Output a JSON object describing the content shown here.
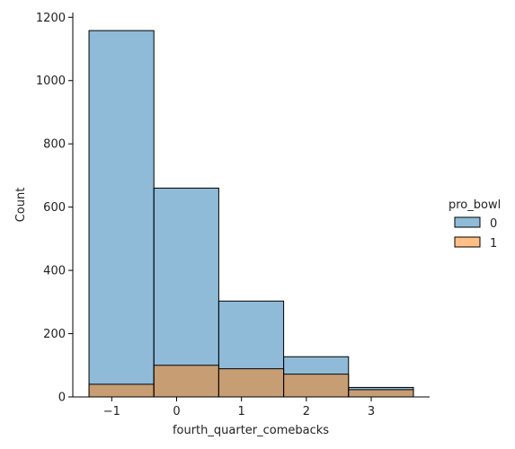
{
  "chart_data": {
    "type": "bar",
    "subtype": "histogram-overlay",
    "xlabel": "fourth_quarter_comebacks",
    "ylabel": "Count",
    "bin_edges": [
      -1.35,
      -0.35,
      0.65,
      1.65,
      2.65,
      3.65
    ],
    "x_ticks": [
      -1,
      0,
      1,
      2,
      3
    ],
    "x_tick_labels": [
      "−1",
      "0",
      "1",
      "2",
      "3"
    ],
    "y_ticks": [
      0,
      200,
      400,
      600,
      800,
      1000,
      1200
    ],
    "y_tick_labels": [
      "0",
      "200",
      "400",
      "600",
      "800",
      "1000",
      "1200"
    ],
    "xlim": [
      -1.6,
      3.9
    ],
    "ylim": [
      0,
      1215
    ],
    "legend": {
      "title": "pro_bowl",
      "placement": "right",
      "entries": [
        "0",
        "1"
      ]
    },
    "series": [
      {
        "name": "0",
        "color": "#1f77b4",
        "values": [
          1158,
          660,
          303,
          127,
          30
        ]
      },
      {
        "name": "1",
        "color": "#ff7f0e",
        "values": [
          40,
          100,
          89,
          72,
          23
        ]
      }
    ],
    "grid": false
  }
}
